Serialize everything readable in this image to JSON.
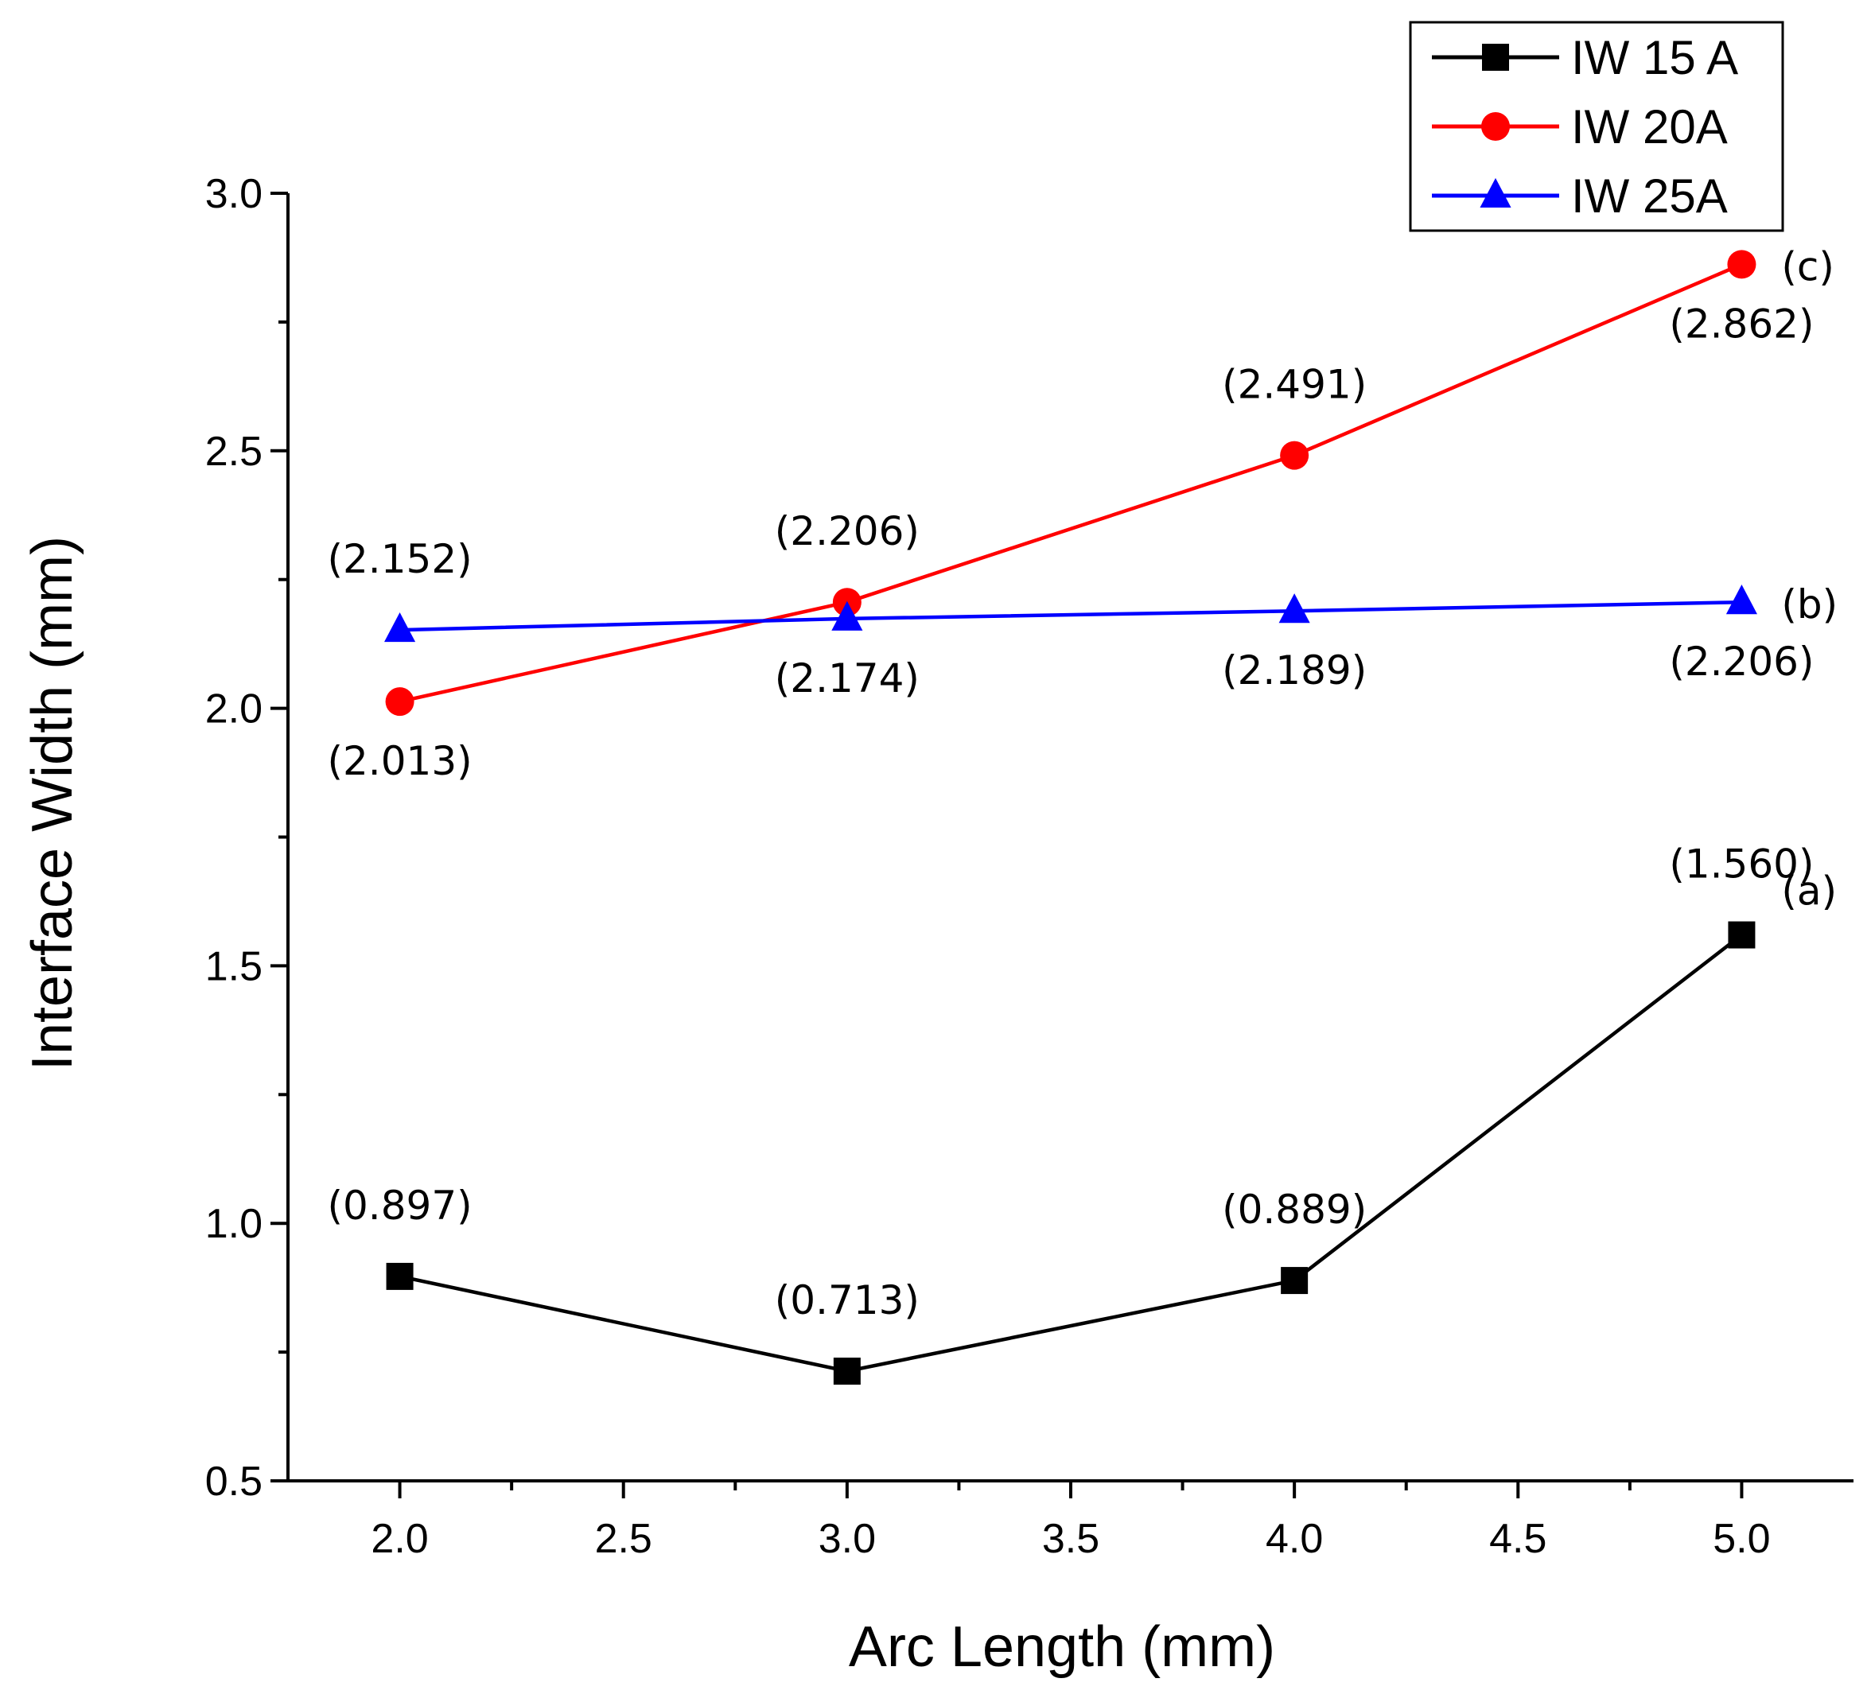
{
  "chart_data": {
    "type": "line",
    "title": "",
    "xlabel": "Arc Length (mm)",
    "ylabel": "Interface Width (mm)",
    "x": [
      2.0,
      3.0,
      4.0,
      5.0
    ],
    "xlim": [
      1.75,
      5.25
    ],
    "ylim": [
      0.5,
      3.0
    ],
    "xticks": [
      "2.0",
      "2.5",
      "3.0",
      "3.5",
      "4.0",
      "4.5",
      "5.0"
    ],
    "xtick_values": [
      2.0,
      2.5,
      3.0,
      3.5,
      4.0,
      4.5,
      5.0
    ],
    "yticks": [
      "0.5",
      "1.0",
      "1.5",
      "2.0",
      "2.5",
      "3.0"
    ],
    "ytick_values": [
      0.5,
      1.0,
      1.5,
      2.0,
      2.5,
      3.0
    ],
    "grid": false,
    "legend_position": "top-right",
    "series": [
      {
        "name": "IW 15 A",
        "color": "#000000",
        "marker": "square",
        "values": [
          0.897,
          0.713,
          0.889,
          1.56
        ],
        "labels": [
          "(0.897)",
          "(0.713)",
          "(0.889)",
          "(1.560)"
        ],
        "label_positions": [
          "above",
          "above",
          "above",
          "above"
        ],
        "tag": "(a)"
      },
      {
        "name": "IW 20A",
        "color": "#ff0000",
        "marker": "circle",
        "values": [
          2.013,
          2.206,
          2.491,
          2.862
        ],
        "labels": [
          "(2.013)",
          "(2.206)",
          "(2.491)",
          "(2.862)"
        ],
        "label_positions": [
          "below",
          "above",
          "above",
          "below"
        ],
        "tag": "(c)"
      },
      {
        "name": "IW 25A",
        "color": "#0000ff",
        "marker": "triangle",
        "values": [
          2.152,
          2.174,
          2.189,
          2.206
        ],
        "labels": [
          "(2.152)",
          "(2.174)",
          "(2.189)",
          "(2.206)"
        ],
        "label_positions": [
          "above",
          "below",
          "below",
          "below"
        ],
        "tag": "(b)"
      }
    ]
  }
}
